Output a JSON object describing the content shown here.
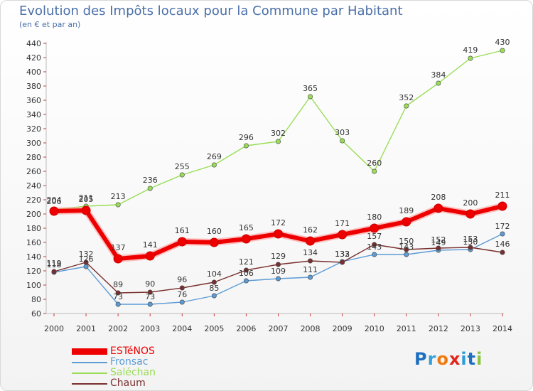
{
  "header": {
    "title": "Evolution des Impôts locaux pour la Commune par Habitant",
    "subtitle": "(en € et par an)"
  },
  "brand": {
    "logo_text": "Proxiti"
  },
  "chart_data": {
    "type": "line",
    "x": [
      "2000",
      "2001",
      "2002",
      "2003",
      "2004",
      "2005",
      "2006",
      "2007",
      "2008",
      "2009",
      "2010",
      "2011",
      "2012",
      "2013",
      "2014"
    ],
    "ylim": [
      60,
      440
    ],
    "yticks": [
      60,
      80,
      100,
      120,
      140,
      160,
      180,
      200,
      220,
      240,
      260,
      280,
      300,
      320,
      340,
      360,
      380,
      400,
      420,
      440
    ],
    "grid": false,
    "legend_position": "bottom-left",
    "series": [
      {
        "name": "ESTéNOS",
        "color": "#ee0000",
        "values": [
          204,
          205,
          137,
          141,
          161,
          160,
          165,
          172,
          162,
          171,
          180,
          189,
          208,
          200,
          211
        ],
        "labels": [
          "204",
          "205",
          "137",
          "141",
          "161",
          "160",
          "165",
          "172",
          "162",
          "171",
          "180",
          "189",
          "208",
          "200",
          "211"
        ]
      },
      {
        "name": "Fronsac",
        "color": "#5b9bd5",
        "values": [
          118,
          126,
          73,
          73,
          76,
          85,
          106,
          109,
          111,
          133,
          143,
          143,
          149,
          150,
          172
        ],
        "labels": [
          "118",
          "126",
          "73",
          "73",
          "76",
          "85",
          "106",
          "109",
          "111",
          "133",
          "143",
          "143",
          "149",
          "150",
          "172"
        ]
      },
      {
        "name": "Saléchan",
        "color": "#99dd55",
        "values": [
          206,
          211,
          213,
          236,
          255,
          269,
          296,
          302,
          365,
          303,
          260,
          352,
          384,
          419,
          430
        ],
        "labels": [
          "206",
          "211",
          "213",
          "236",
          "255",
          "269",
          "296",
          "302",
          "365",
          "303",
          "260",
          "352",
          "384",
          "419",
          "430"
        ]
      },
      {
        "name": "Chaum",
        "color": "#7a2e2e",
        "values": [
          119,
          132,
          89,
          90,
          96,
          104,
          121,
          129,
          134,
          132,
          157,
          150,
          152,
          153,
          146
        ],
        "labels": [
          "119",
          "132",
          "89",
          "90",
          "96",
          "104",
          "121",
          "129",
          "134",
          "132",
          "157",
          "150",
          "152",
          "153",
          "146"
        ]
      }
    ]
  }
}
